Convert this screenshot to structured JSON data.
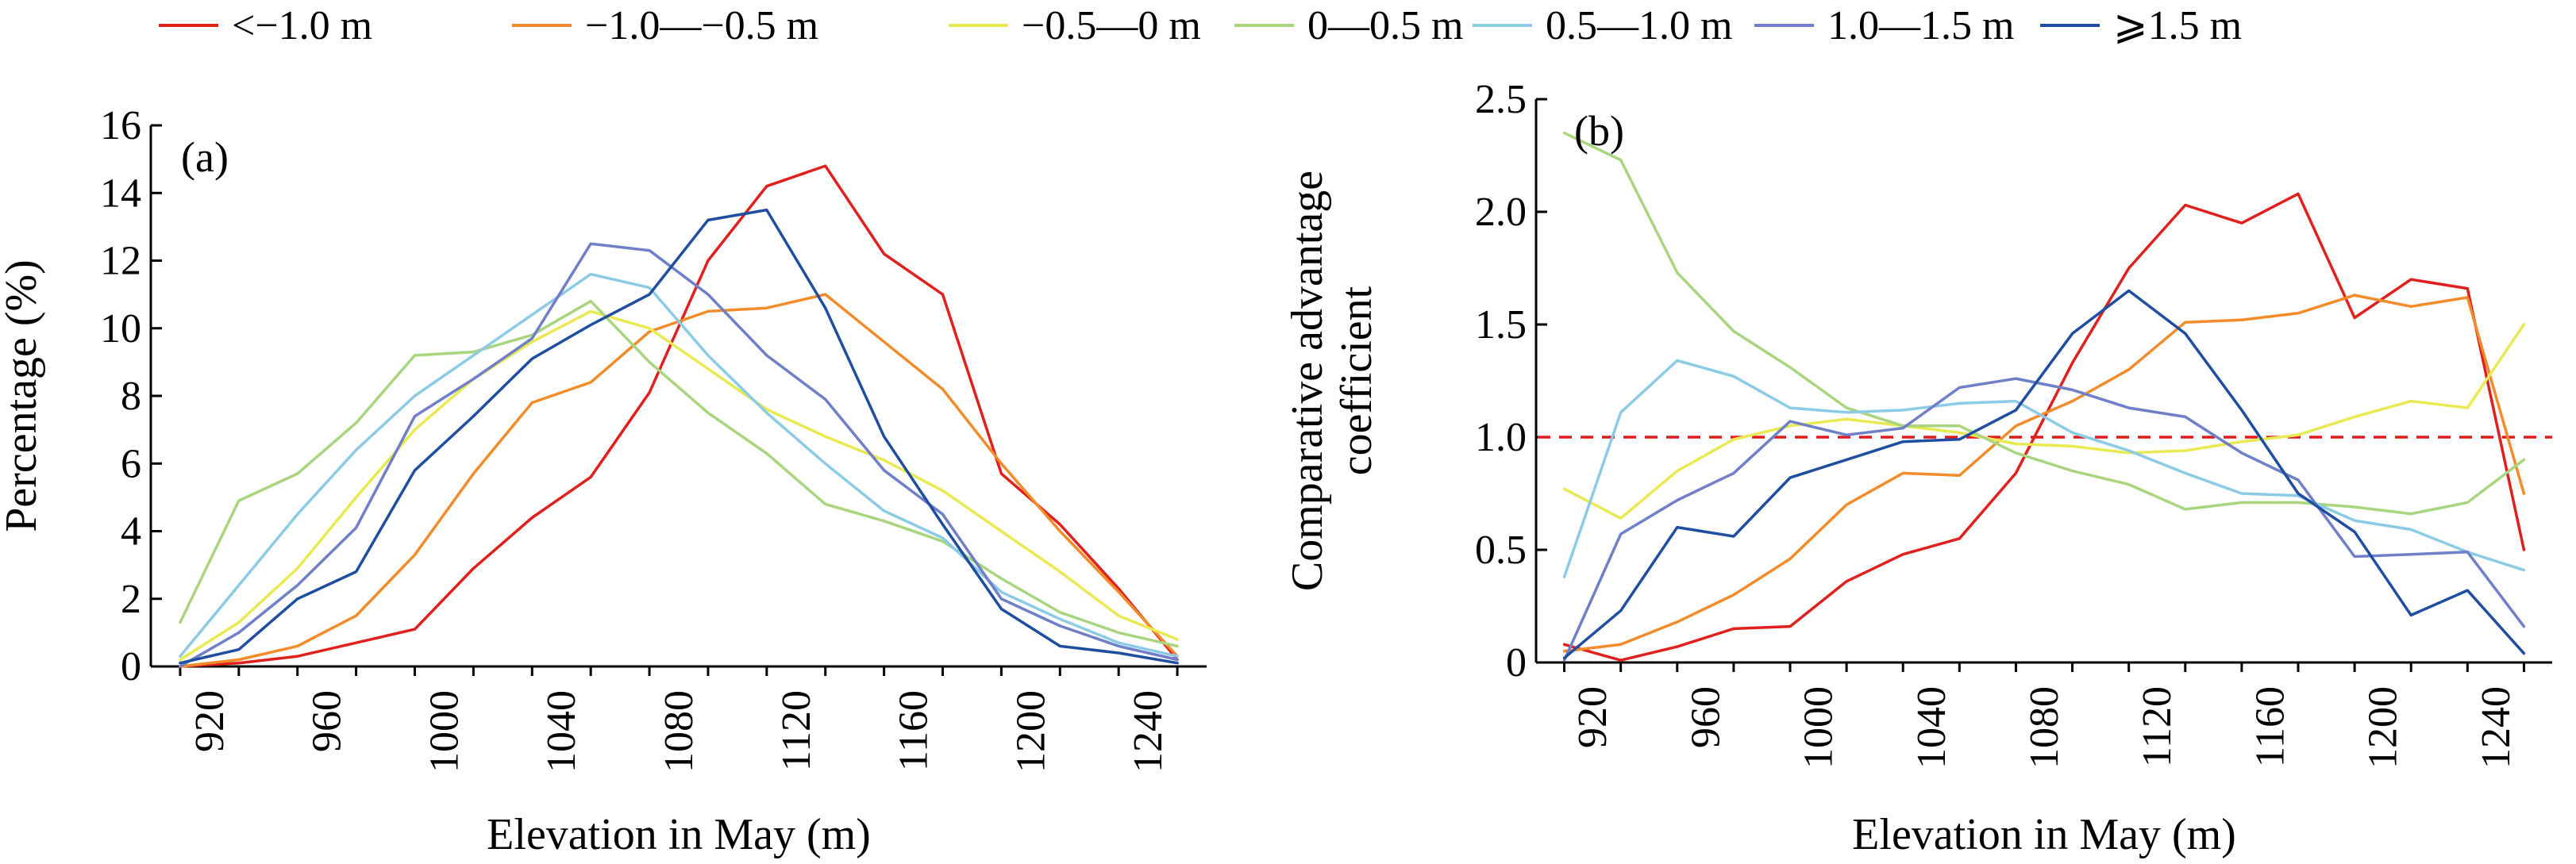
{
  "legend": {
    "items": [
      {
        "label": "<−1.0 m",
        "color": "#e0201d"
      },
      {
        "label": "−1.0—−0.5 m",
        "color": "#f28c2a"
      },
      {
        "label": "−0.5—0 m",
        "color": "#e9ea52"
      },
      {
        "label": "0—0.5 m",
        "color": "#a8d57e"
      },
      {
        "label": "0.5—1.0 m",
        "color": "#8ccbe6"
      },
      {
        "label": "1.0—1.5 m",
        "color": "#6f7fc8"
      },
      {
        "label": "⩾1.5 m",
        "color": "#1f4ea1"
      }
    ]
  },
  "chart_data": [
    {
      "type": "line",
      "panel_label": "(a)",
      "xlabel": "Elevation in May (m)",
      "ylabel": "Percentage (%)",
      "xlim": [
        900,
        1260
      ],
      "ylim": [
        0,
        16
      ],
      "xticks": [
        920,
        960,
        1000,
        1040,
        1080,
        1120,
        1160,
        1200,
        1240
      ],
      "yticks": [
        0,
        2,
        4,
        6,
        8,
        10,
        12,
        14,
        16
      ],
      "x": [
        910,
        930,
        950,
        970,
        990,
        1010,
        1030,
        1050,
        1070,
        1090,
        1110,
        1130,
        1150,
        1170,
        1190,
        1210,
        1230,
        1250
      ],
      "series": [
        {
          "name": "<−1.0 m",
          "values": [
            0.0,
            0.1,
            0.3,
            0.7,
            1.1,
            2.9,
            4.4,
            5.6,
            8.1,
            12.0,
            14.2,
            14.8,
            12.2,
            11.0,
            5.7,
            4.2,
            2.3,
            0.2
          ]
        },
        {
          "name": "−1.0—−0.5 m",
          "values": [
            0.0,
            0.2,
            0.6,
            1.5,
            3.3,
            5.7,
            7.8,
            8.4,
            9.9,
            10.5,
            10.6,
            11.0,
            9.6,
            8.2,
            6.0,
            4.0,
            2.2,
            0.3
          ]
        },
        {
          "name": "−0.5—0 m",
          "values": [
            0.2,
            1.3,
            2.9,
            5.0,
            7.0,
            8.5,
            9.6,
            10.5,
            10.0,
            8.8,
            7.6,
            6.8,
            6.1,
            5.2,
            4.0,
            2.8,
            1.5,
            0.8
          ]
        },
        {
          "name": "0—0.5 m",
          "values": [
            1.3,
            4.9,
            5.7,
            7.2,
            9.2,
            9.3,
            9.8,
            10.8,
            9.0,
            7.5,
            6.3,
            4.8,
            4.3,
            3.7,
            2.6,
            1.6,
            1.0,
            0.6
          ]
        },
        {
          "name": "0.5—1.0 m",
          "values": [
            0.3,
            2.4,
            4.5,
            6.4,
            8.0,
            9.2,
            10.4,
            11.6,
            11.2,
            9.2,
            7.5,
            6.0,
            4.6,
            3.8,
            2.2,
            1.4,
            0.7,
            0.3
          ]
        },
        {
          "name": "1.0—1.5 m",
          "values": [
            0.0,
            1.0,
            2.4,
            4.1,
            7.4,
            8.5,
            9.7,
            12.5,
            12.3,
            11.0,
            9.2,
            7.9,
            5.8,
            4.5,
            2.0,
            1.2,
            0.6,
            0.2
          ]
        },
        {
          "name": "⩾1.5 m",
          "values": [
            0.1,
            0.5,
            2.0,
            2.8,
            5.8,
            7.4,
            9.1,
            10.1,
            11.0,
            13.2,
            13.5,
            10.6,
            6.8,
            4.2,
            1.7,
            0.6,
            0.4,
            0.1
          ]
        }
      ]
    },
    {
      "type": "line",
      "panel_label": "(b)",
      "xlabel": "Elevation in May (m)",
      "ylabel_line1": "Comparative advantage",
      "ylabel_line2": "coefficient",
      "xlim": [
        900,
        1260
      ],
      "ylim": [
        0,
        2.5
      ],
      "xticks": [
        920,
        960,
        1000,
        1040,
        1080,
        1120,
        1160,
        1200,
        1240
      ],
      "yticks": [
        "0",
        "0.5",
        "1.0",
        "1.5",
        "2.0",
        "2.5"
      ],
      "reference_line": 1.0,
      "x": [
        910,
        930,
        950,
        970,
        990,
        1010,
        1030,
        1050,
        1070,
        1090,
        1110,
        1130,
        1150,
        1170,
        1190,
        1210,
        1230,
        1250
      ],
      "series": [
        {
          "name": "<−1.0 m",
          "values": [
            0.08,
            0.01,
            0.07,
            0.15,
            0.16,
            0.36,
            0.48,
            0.55,
            0.84,
            1.33,
            1.75,
            2.03,
            1.95,
            2.08,
            1.53,
            1.7,
            1.66,
            0.5
          ]
        },
        {
          "name": "−1.0—−0.5 m",
          "values": [
            0.05,
            0.08,
            0.18,
            0.3,
            0.46,
            0.7,
            0.84,
            0.83,
            1.05,
            1.16,
            1.3,
            1.51,
            1.52,
            1.55,
            1.63,
            1.58,
            1.62,
            0.75
          ]
        },
        {
          "name": "−0.5—0 m",
          "values": [
            0.77,
            0.64,
            0.85,
            0.99,
            1.05,
            1.08,
            1.05,
            1.02,
            0.97,
            0.96,
            0.93,
            0.94,
            0.98,
            1.01,
            1.09,
            1.16,
            1.13,
            1.5
          ]
        },
        {
          "name": "0—0.5 m",
          "values": [
            2.35,
            2.23,
            1.73,
            1.47,
            1.31,
            1.13,
            1.05,
            1.05,
            0.93,
            0.85,
            0.79,
            0.68,
            0.71,
            0.71,
            0.69,
            0.66,
            0.71,
            0.9
          ]
        },
        {
          "name": "0.5—1.0 m",
          "values": [
            0.38,
            1.11,
            1.34,
            1.27,
            1.13,
            1.11,
            1.12,
            1.15,
            1.16,
            1.02,
            0.94,
            0.84,
            0.75,
            0.74,
            0.63,
            0.59,
            0.49,
            0.41
          ]
        },
        {
          "name": "1.0—1.5 m",
          "values": [
            0.01,
            0.57,
            0.72,
            0.84,
            1.07,
            1.01,
            1.04,
            1.22,
            1.26,
            1.21,
            1.13,
            1.09,
            0.93,
            0.81,
            0.47,
            0.48,
            0.49,
            0.16
          ]
        },
        {
          "name": "⩾1.5 m",
          "values": [
            0.02,
            0.23,
            0.6,
            0.56,
            0.82,
            0.9,
            0.98,
            0.99,
            1.12,
            1.46,
            1.65,
            1.46,
            1.12,
            0.75,
            0.58,
            0.21,
            0.32,
            0.04
          ]
        }
      ]
    }
  ]
}
